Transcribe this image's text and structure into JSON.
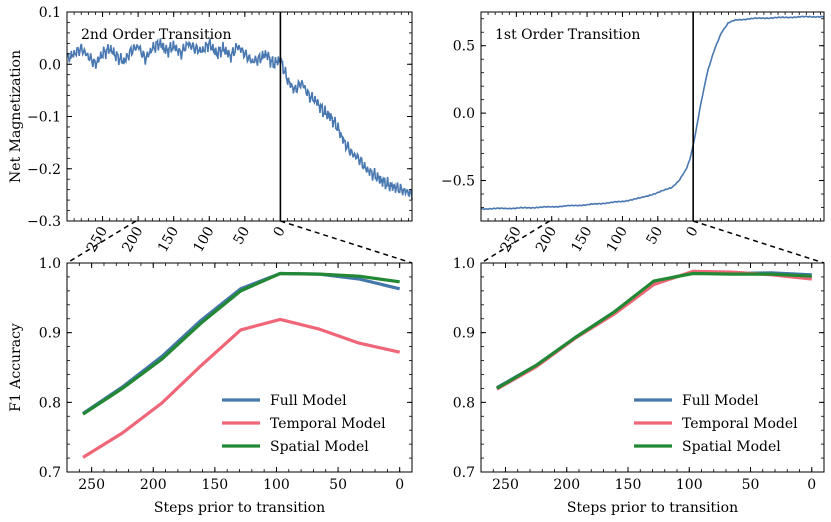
{
  "colors": {
    "full": "#4477aa",
    "temporal": "#ee6677",
    "spatial": "#228833",
    "mag": "#4a78b0"
  },
  "chart_data": [
    {
      "type": "line",
      "panel": "top-left",
      "annotation": "2nd Order Transition",
      "ylabel": "Net Magnetization",
      "xlabel": "",
      "ylim": [
        -0.3,
        0.1
      ],
      "yticks": [
        0.1,
        0.0,
        -0.1,
        -0.2,
        -0.3
      ],
      "ytick_labels": [
        "0.1",
        "0.0",
        "−0.1",
        "−0.2",
        "−0.3"
      ],
      "xlim": [
        -300,
        185
      ],
      "xticks": [
        -250,
        -200,
        -150,
        -100,
        -50,
        0
      ],
      "xtick_labels": [
        "250",
        "200",
        "150",
        "100",
        "50",
        "0"
      ],
      "transition_at": 0,
      "x": [
        -300,
        -290,
        -280,
        -270,
        -260,
        -250,
        -240,
        -230,
        -220,
        -210,
        -200,
        -190,
        -180,
        -170,
        -160,
        -150,
        -140,
        -130,
        -120,
        -110,
        -100,
        -90,
        -80,
        -70,
        -60,
        -50,
        -40,
        -30,
        -20,
        -10,
        0,
        10,
        20,
        30,
        40,
        50,
        60,
        70,
        80,
        90,
        100,
        110,
        120,
        130,
        140,
        150,
        160,
        170,
        180,
        185
      ],
      "y": [
        0.01,
        0.02,
        0.03,
        0.015,
        0.0,
        0.02,
        0.03,
        0.015,
        0.005,
        0.025,
        0.035,
        0.01,
        0.03,
        0.04,
        0.025,
        0.035,
        0.02,
        0.04,
        0.03,
        0.025,
        0.04,
        0.02,
        0.03,
        0.015,
        0.035,
        0.02,
        0.005,
        0.01,
        0.02,
        0.0,
        0.01,
        -0.03,
        -0.05,
        -0.035,
        -0.06,
        -0.07,
        -0.09,
        -0.1,
        -0.12,
        -0.15,
        -0.17,
        -0.18,
        -0.2,
        -0.21,
        -0.22,
        -0.23,
        -0.235,
        -0.24,
        -0.245,
        -0.25
      ]
    },
    {
      "type": "line",
      "panel": "top-right",
      "annotation": "1st Order Transition",
      "ylabel": "",
      "xlabel": "",
      "ylim": [
        -0.8,
        0.75
      ],
      "yticks": [
        0.5,
        0.0,
        -0.5
      ],
      "ytick_labels": [
        "0.5",
        "0.0",
        "−0.5"
      ],
      "xlim": [
        -300,
        185
      ],
      "xticks": [
        -250,
        -200,
        -150,
        -100,
        -50,
        0
      ],
      "xtick_labels": [
        "250",
        "200",
        "150",
        "100",
        "50",
        "0"
      ],
      "transition_at": 0,
      "x": [
        -300,
        -250,
        -200,
        -150,
        -100,
        -75,
        -50,
        -30,
        -20,
        -10,
        -5,
        0,
        5,
        10,
        20,
        30,
        40,
        50,
        60,
        80,
        100,
        130,
        160,
        185
      ],
      "y": [
        -0.71,
        -0.705,
        -0.695,
        -0.68,
        -0.655,
        -0.63,
        -0.59,
        -0.55,
        -0.5,
        -0.42,
        -0.35,
        -0.24,
        -0.1,
        0.05,
        0.3,
        0.47,
        0.6,
        0.67,
        0.69,
        0.7,
        0.705,
        0.71,
        0.715,
        0.715
      ]
    },
    {
      "type": "line",
      "panel": "bottom-left",
      "xlabel": "Steps prior to transition",
      "ylabel": "F1 Accuracy",
      "ylim": [
        0.7,
        1.0
      ],
      "yticks": [
        1.0,
        0.9,
        0.8,
        0.7
      ],
      "ytick_labels": [
        "1.0",
        "0.9",
        "0.8",
        "0.7"
      ],
      "xlim": [
        270,
        -10
      ],
      "xticks": [
        250,
        200,
        150,
        100,
        50,
        0
      ],
      "xtick_labels": [
        "250",
        "200",
        "150",
        "100",
        "50",
        "0"
      ],
      "legend": "lower-right",
      "x": [
        257,
        225,
        193,
        161,
        129,
        97,
        65,
        33,
        0
      ],
      "series": [
        {
          "name": "Full Model",
          "color_key": "full",
          "values": [
            0.784,
            0.822,
            0.866,
            0.918,
            0.963,
            0.985,
            0.984,
            0.977,
            0.963
          ]
        },
        {
          "name": "Temporal Model",
          "color_key": "temporal",
          "values": [
            0.721,
            0.756,
            0.799,
            0.853,
            0.904,
            0.919,
            0.905,
            0.885,
            0.872
          ]
        },
        {
          "name": "Spatial Model",
          "color_key": "spatial",
          "values": [
            0.783,
            0.82,
            0.862,
            0.914,
            0.96,
            0.985,
            0.984,
            0.981,
            0.973
          ]
        }
      ]
    },
    {
      "type": "line",
      "panel": "bottom-right",
      "xlabel": "Steps prior to transition",
      "ylabel": "",
      "ylim": [
        0.7,
        1.0
      ],
      "yticks": [
        1.0,
        0.9,
        0.8,
        0.7
      ],
      "ytick_labels": [
        "1.0",
        "0.9",
        "0.8",
        "0.7"
      ],
      "xlim": [
        270,
        -10
      ],
      "xticks": [
        250,
        200,
        150,
        100,
        50,
        0
      ],
      "xtick_labels": [
        "250",
        "200",
        "150",
        "100",
        "50",
        "0"
      ],
      "legend": "lower-right",
      "x": [
        257,
        225,
        193,
        161,
        129,
        97,
        65,
        33,
        0
      ],
      "series": [
        {
          "name": "Full Model",
          "color_key": "full",
          "values": [
            0.821,
            0.853,
            0.893,
            0.93,
            0.973,
            0.986,
            0.985,
            0.986,
            0.983
          ]
        },
        {
          "name": "Temporal Model",
          "color_key": "temporal",
          "values": [
            0.819,
            0.851,
            0.892,
            0.927,
            0.969,
            0.988,
            0.987,
            0.983,
            0.977
          ]
        },
        {
          "name": "Spatial Model",
          "color_key": "spatial",
          "values": [
            0.82,
            0.853,
            0.893,
            0.93,
            0.974,
            0.985,
            0.984,
            0.984,
            0.981
          ]
        }
      ]
    }
  ]
}
